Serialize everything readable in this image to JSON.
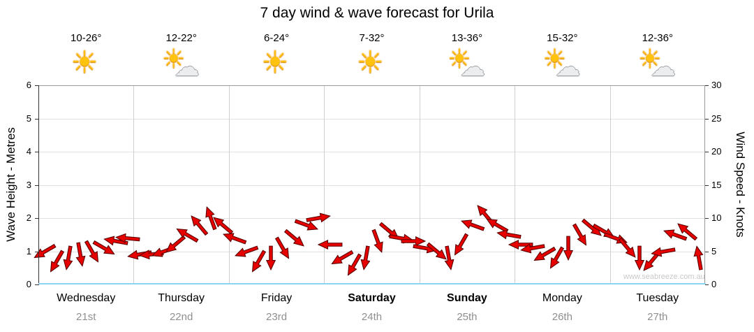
{
  "chart_data": {
    "type": "scatter",
    "title": "7 day wind & wave forecast for Urila",
    "watermark": "www.seabreeze.com.au",
    "left_axis": {
      "label": "Wave Height - Metres",
      "min": 0,
      "max": 6,
      "ticks": [
        0,
        1,
        2,
        3,
        4,
        5,
        6
      ]
    },
    "right_axis": {
      "label": "Wind Speed - Knots",
      "min": 0,
      "max": 30,
      "ticks": [
        0,
        5,
        10,
        15,
        20,
        25,
        30
      ]
    },
    "grid": true,
    "arrow_color": "#e60000",
    "arrow_outline": "#5a0000",
    "icons": {
      "sun": "☀",
      "cloud": "☁"
    },
    "days": [
      {
        "name": "Wednesday",
        "date": "21st",
        "temp": "10-26°",
        "icon": "sunny",
        "bold": false
      },
      {
        "name": "Thursday",
        "date": "22nd",
        "temp": "12-22°",
        "icon": "partly-cloudy",
        "bold": false
      },
      {
        "name": "Friday",
        "date": "23rd",
        "temp": "6-24°",
        "icon": "sunny",
        "bold": false
      },
      {
        "name": "Saturday",
        "date": "24th",
        "temp": "7-32°",
        "icon": "sunny",
        "bold": true
      },
      {
        "name": "Sunday",
        "date": "25th",
        "temp": "13-36°",
        "icon": "partly-cloudy",
        "bold": true
      },
      {
        "name": "Monday",
        "date": "26th",
        "temp": "15-32°",
        "icon": "partly-cloudy",
        "bold": false
      },
      {
        "name": "Tuesday",
        "date": "27th",
        "temp": "12-36°",
        "icon": "partly-cloudy",
        "bold": false
      }
    ],
    "wind_points": [
      {
        "knots": 5,
        "dir": 150
      },
      {
        "knots": 3.5,
        "dir": 120
      },
      {
        "knots": 4,
        "dir": 100
      },
      {
        "knots": 4.5,
        "dir": 80
      },
      {
        "knots": 5,
        "dir": 60
      },
      {
        "knots": 5.5,
        "dir": 30
      },
      {
        "knots": 6.5,
        "dir": 190
      },
      {
        "knots": 7,
        "dir": 185
      },
      {
        "knots": 4.5,
        "dir": 170
      },
      {
        "knots": 4.5,
        "dir": 175
      },
      {
        "knots": 5,
        "dir": 160
      },
      {
        "knots": 6,
        "dir": 140
      },
      {
        "knots": 7.5,
        "dir": 210
      },
      {
        "knots": 9,
        "dir": 230
      },
      {
        "knots": 10,
        "dir": 250
      },
      {
        "knots": 9,
        "dir": 220
      },
      {
        "knots": 7,
        "dir": 200
      },
      {
        "knots": 5,
        "dir": 160
      },
      {
        "knots": 3.5,
        "dir": 120
      },
      {
        "knots": 4,
        "dir": 90
      },
      {
        "knots": 5.5,
        "dir": 60
      },
      {
        "knots": 7,
        "dir": 40
      },
      {
        "knots": 9,
        "dir": 20
      },
      {
        "knots": 10,
        "dir": 350
      },
      {
        "knots": 6,
        "dir": 180
      },
      {
        "knots": 4,
        "dir": 150
      },
      {
        "knots": 3,
        "dir": 120
      },
      {
        "knots": 4,
        "dir": 100
      },
      {
        "knots": 6.5,
        "dir": 70
      },
      {
        "knots": 8,
        "dir": 40
      },
      {
        "knots": 7,
        "dir": 10
      },
      {
        "knots": 6.5,
        "dir": 0
      },
      {
        "knots": 5.5,
        "dir": 10
      },
      {
        "knots": 5,
        "dir": 40
      },
      {
        "knots": 4,
        "dir": 80
      },
      {
        "knots": 6,
        "dir": 120
      },
      {
        "knots": 9,
        "dir": 200
      },
      {
        "knots": 10.5,
        "dir": 230
      },
      {
        "knots": 9,
        "dir": 210
      },
      {
        "knots": 7.5,
        "dir": 190
      },
      {
        "knots": 6,
        "dir": 180
      },
      {
        "knots": 5.5,
        "dir": 170
      },
      {
        "knots": 4.5,
        "dir": 150
      },
      {
        "knots": 4,
        "dir": 120
      },
      {
        "knots": 5.5,
        "dir": 90
      },
      {
        "knots": 7.5,
        "dir": 60
      },
      {
        "knots": 8.5,
        "dir": 40
      },
      {
        "knots": 8,
        "dir": 30
      },
      {
        "knots": 7,
        "dir": 20
      },
      {
        "knots": 5.5,
        "dir": 50
      },
      {
        "knots": 4,
        "dir": 90
      },
      {
        "knots": 3.5,
        "dir": 130
      },
      {
        "knots": 5,
        "dir": 170
      },
      {
        "knots": 7.5,
        "dir": 200
      },
      {
        "knots": 8,
        "dir": 220
      },
      {
        "knots": 4,
        "dir": 260
      }
    ]
  }
}
